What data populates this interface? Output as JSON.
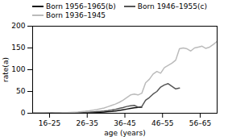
{
  "chart_data": {
    "type": "line",
    "xlabel": "age (years)",
    "ylabel": "rate(a)",
    "xlim": [
      16,
      65
    ],
    "xticks": [
      {
        "value": 20.5,
        "label": "16–25"
      },
      {
        "value": 30.5,
        "label": "26–35"
      },
      {
        "value": 40.5,
        "label": "36–45"
      },
      {
        "value": 50.5,
        "label": "46–55"
      },
      {
        "value": 60.5,
        "label": "56–65"
      }
    ],
    "ylim": [
      0,
      200
    ],
    "yticks": [
      0,
      50,
      100,
      150,
      200
    ],
    "grid": false,
    "legend": "top-left",
    "series": [
      {
        "name": "Born 1956–1965(b)",
        "color": "#111111",
        "x": [
          16,
          17,
          18,
          19,
          20,
          21,
          22,
          23,
          24,
          25,
          26,
          27,
          28,
          29,
          30,
          31,
          32,
          33,
          34,
          35,
          36,
          37,
          38,
          39,
          40,
          41,
          42,
          43,
          44,
          45
        ],
        "values": [
          0.1,
          0.1,
          0.2,
          0.2,
          0.2,
          0.3,
          0.3,
          0.4,
          0.4,
          0.5,
          0.6,
          0.7,
          0.9,
          1.1,
          1.3,
          1.5,
          1.8,
          2.1,
          2.5,
          3.0,
          3.5,
          4.0,
          5.0,
          6.5,
          8.0,
          9.5,
          11.0,
          12.5,
          13.5,
          14.0
        ]
      },
      {
        "name": "Born 1946–1955(c)",
        "color": "#555555",
        "x": [
          16,
          17,
          18,
          19,
          20,
          21,
          22,
          23,
          24,
          25,
          26,
          27,
          28,
          29,
          30,
          31,
          32,
          33,
          34,
          35,
          36,
          37,
          38,
          39,
          40,
          41,
          42,
          43,
          44,
          45,
          46,
          47,
          48,
          49,
          50,
          51,
          52,
          53,
          54,
          55
        ],
        "values": [
          0.1,
          0.1,
          0.2,
          0.2,
          0.3,
          0.3,
          0.4,
          0.5,
          0.6,
          0.7,
          0.9,
          1.1,
          1.4,
          1.7,
          2.1,
          2.5,
          3.0,
          3.6,
          4.3,
          5.1,
          6.2,
          7.5,
          9.0,
          11.0,
          13.0,
          15.5,
          17.0,
          18.0,
          14.0,
          15.5,
          30.0,
          36.0,
          44.0,
          50.0,
          60.0,
          65.0,
          68.0,
          62.0,
          56.0,
          58.0
        ]
      },
      {
        "name": "Born 1936–1945",
        "color": "#bbbbbb",
        "x": [
          16,
          17,
          18,
          19,
          20,
          21,
          22,
          23,
          24,
          25,
          26,
          27,
          28,
          29,
          30,
          31,
          32,
          33,
          34,
          35,
          36,
          37,
          38,
          39,
          40,
          41,
          42,
          43,
          44,
          45,
          46,
          47,
          48,
          49,
          50,
          51,
          52,
          53,
          54,
          55,
          56,
          57,
          58,
          59,
          60,
          61,
          62,
          63,
          64,
          65
        ],
        "values": [
          0.2,
          0.3,
          0.3,
          0.4,
          0.5,
          0.6,
          0.8,
          1.0,
          1.3,
          1.6,
          2.0,
          2.5,
          3.0,
          3.7,
          4.5,
          5.5,
          6.8,
          8.2,
          10.0,
          12.0,
          15.0,
          18.0,
          21.0,
          25.0,
          30.0,
          36.0,
          42.0,
          44.0,
          42.0,
          46.0,
          70.0,
          78.0,
          90.0,
          96.0,
          92.0,
          105.0,
          110.0,
          115.0,
          122.0,
          148.0,
          150.0,
          148.0,
          143.0,
          150.0,
          152.0,
          154.0,
          149.0,
          152.0,
          158.0,
          165.0
        ]
      }
    ]
  }
}
